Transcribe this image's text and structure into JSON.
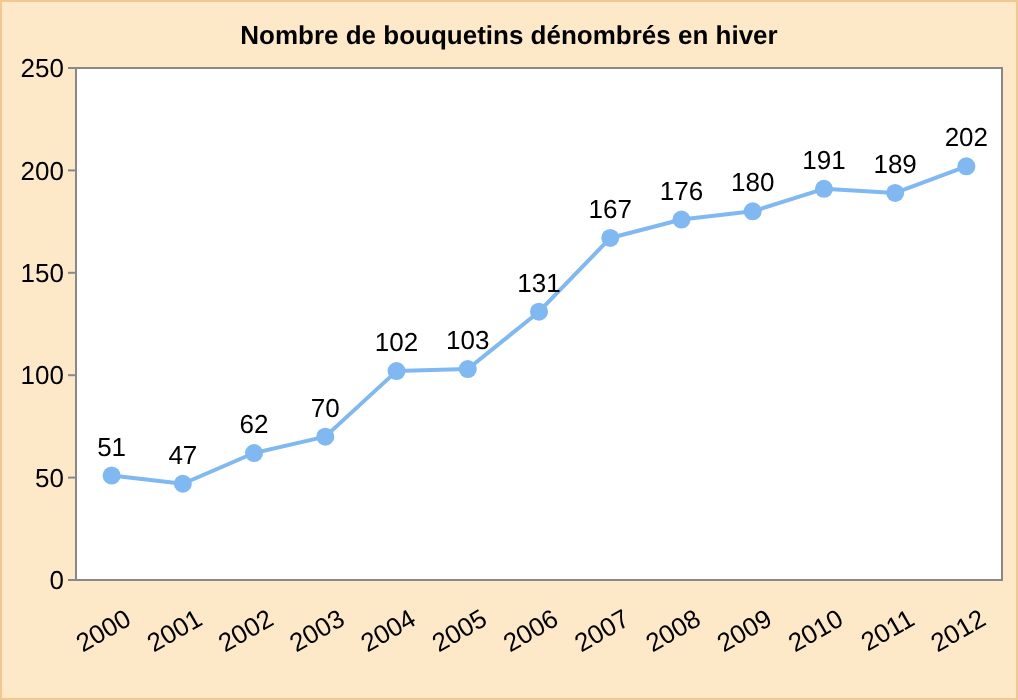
{
  "chart_data": {
    "type": "line",
    "title": "Nombre de bouquetins dénombrés en hiver",
    "categories": [
      "2000",
      "2001",
      "2002",
      "2003",
      "2004",
      "2005",
      "2006",
      "2007",
      "2008",
      "2009",
      "2010",
      "2011",
      "2012"
    ],
    "series": [
      {
        "color": "#80b8f2",
        "values": [
          51,
          47,
          62,
          70,
          102,
          103,
          131,
          167,
          176,
          180,
          191,
          189,
          202
        ]
      }
    ],
    "ylim": [
      0,
      250
    ],
    "yticks": [
      0,
      50,
      100,
      150,
      200,
      250
    ],
    "grid": false,
    "marker": "circle",
    "line_style": "solid",
    "data_labels": true
  }
}
